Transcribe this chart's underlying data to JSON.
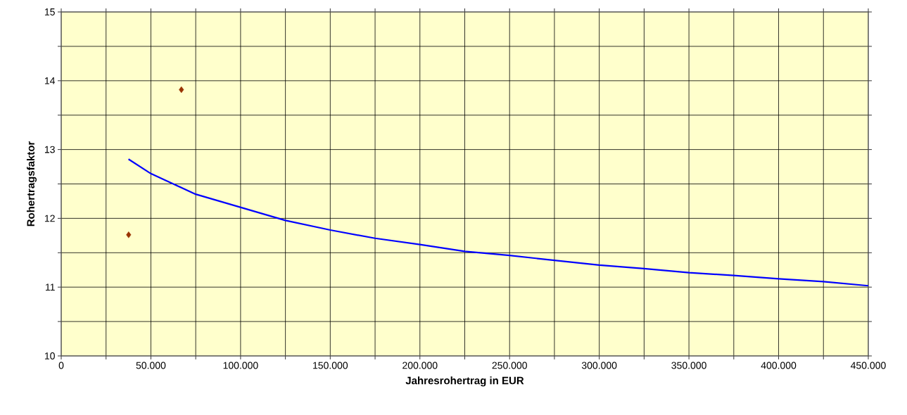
{
  "chart_data": {
    "type": "line",
    "xlabel": "Jahresrohertrag in EUR",
    "ylabel": "Rohertragsfaktor",
    "xlim": [
      0,
      450000
    ],
    "ylim": [
      10,
      15
    ],
    "xticks": [
      0,
      {
        "value": 25000,
        "label": null
      },
      {
        "value": 50000,
        "label": "50.000"
      },
      {
        "value": 75000,
        "label": null
      },
      {
        "value": 100000,
        "label": "100.000"
      },
      {
        "value": 125000,
        "label": null
      },
      {
        "value": 150000,
        "label": "150.000"
      },
      {
        "value": 175000,
        "label": null
      },
      {
        "value": 200000,
        "label": "200.000"
      },
      {
        "value": 225000,
        "label": null
      },
      {
        "value": 250000,
        "label": "250.000"
      },
      {
        "value": 275000,
        "label": null
      },
      {
        "value": 300000,
        "label": "300.000"
      },
      {
        "value": 325000,
        "label": null
      },
      {
        "value": 350000,
        "label": "350.000"
      },
      {
        "value": 375000,
        "label": null
      },
      {
        "value": 400000,
        "label": "400.000"
      },
      {
        "value": 425000,
        "label": null
      },
      {
        "value": 450000,
        "label": "450.000"
      }
    ],
    "yticks": [
      10,
      {
        "value": 10.5,
        "label": null
      },
      11,
      {
        "value": 11.5,
        "label": null
      },
      12,
      {
        "value": 12.5,
        "label": null
      },
      13,
      {
        "value": 13.5,
        "label": null
      },
      14,
      {
        "value": 14.5,
        "label": null
      },
      15
    ],
    "grid": true,
    "series": [
      {
        "type": "scatter",
        "marker": "diamond",
        "color": "#993300",
        "x": [
          37600,
          67000
        ],
        "values": [
          11.76,
          13.87
        ]
      },
      {
        "marker": "none",
        "line_style": "solid",
        "color": "#0000ff",
        "x": [
          37500,
          50000,
          75000,
          100000,
          125000,
          150000,
          175000,
          200000,
          225000,
          250000,
          275000,
          300000,
          325000,
          350000,
          375000,
          400000,
          425000,
          450000
        ],
        "values": [
          12.86,
          12.65,
          12.35,
          12.16,
          11.97,
          11.83,
          11.71,
          11.62,
          11.52,
          11.46,
          11.39,
          11.32,
          11.27,
          11.21,
          11.17,
          11.12,
          11.08,
          11.02
        ]
      }
    ]
  }
}
